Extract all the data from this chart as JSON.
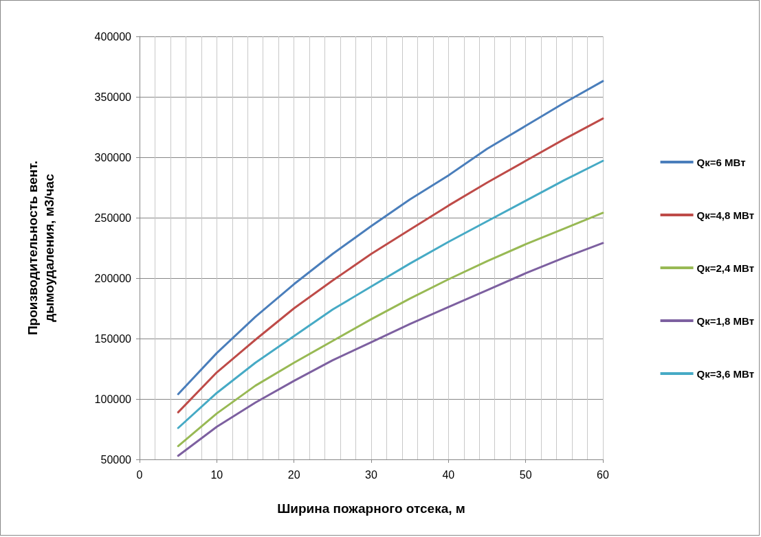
{
  "chart_data": {
    "type": "line",
    "xlabel": "Ширина пожарного отсека, м",
    "ylabel": "Производительность вент.\nдымоудаления, м3/час",
    "x": [
      5,
      10,
      15,
      20,
      25,
      30,
      35,
      40,
      45,
      50,
      55,
      60
    ],
    "series": [
      {
        "name": "Qк=6 МВт",
        "color": "#4a7ebb",
        "values": [
          104000,
          138000,
          168000,
          195000,
          220000,
          243000,
          265000,
          285000,
          307000,
          326000,
          345000,
          363000
        ]
      },
      {
        "name": "Qк=4,8 МВт",
        "color": "#be4b48",
        "values": [
          89000,
          122000,
          149000,
          175000,
          198000,
          220000,
          240000,
          260000,
          279000,
          297000,
          315000,
          332000
        ]
      },
      {
        "name": "Qк=2,4 МВт",
        "color": "#98b954",
        "values": [
          61000,
          88000,
          111000,
          130000,
          148000,
          166000,
          183000,
          199000,
          214000,
          228000,
          241000,
          254000
        ]
      },
      {
        "name": "Qк=1,8 МВт",
        "color": "#7d60a0",
        "values": [
          53000,
          77000,
          97000,
          115000,
          132000,
          147000,
          162000,
          176000,
          190000,
          204000,
          217000,
          229000
        ]
      },
      {
        "name": "Qк=3,6 МВт",
        "color": "#46aac5",
        "values": [
          76000,
          105000,
          130000,
          152000,
          174000,
          193000,
          212000,
          230000,
          247000,
          264000,
          281000,
          297000
        ]
      }
    ],
    "xlim": [
      0,
      60
    ],
    "xticks": [
      0,
      10,
      20,
      30,
      40,
      50,
      60
    ],
    "ylim": [
      50000,
      400000
    ],
    "yticks": [
      50000,
      100000,
      150000,
      200000,
      250000,
      300000,
      350000,
      400000
    ],
    "grid": true,
    "legend": "right",
    "marker": "none",
    "line_style": "solid"
  }
}
